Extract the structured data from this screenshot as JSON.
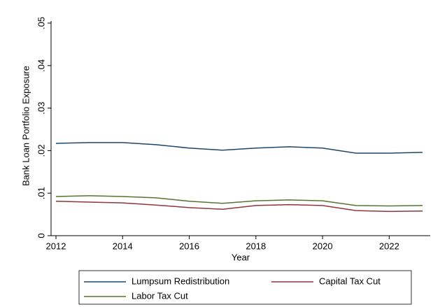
{
  "chart_data": {
    "type": "line",
    "x_label": "Year",
    "y_label": "Bank Loan Portfolio Exposure",
    "x": [
      2012,
      2013,
      2014,
      2015,
      2016,
      2017,
      2018,
      2019,
      2020,
      2021,
      2022,
      2023
    ],
    "series": [
      {
        "name": "Lumpsum Redistribution",
        "color": "#1a476f",
        "values": [
          0.0217,
          0.0219,
          0.0219,
          0.0214,
          0.0206,
          0.0201,
          0.0206,
          0.0209,
          0.0206,
          0.0194,
          0.0194,
          0.0196
        ]
      },
      {
        "name": "Capital Tax Cut",
        "color": "#90353b",
        "values": [
          0.0081,
          0.0079,
          0.0077,
          0.0072,
          0.0066,
          0.0062,
          0.0071,
          0.0073,
          0.0071,
          0.0059,
          0.0057,
          0.0058
        ]
      },
      {
        "name": "Labor Tax Cut",
        "color": "#55752f",
        "values": [
          0.0092,
          0.0094,
          0.0092,
          0.0089,
          0.0081,
          0.0076,
          0.0082,
          0.0084,
          0.0082,
          0.0071,
          0.007,
          0.0071
        ]
      }
    ],
    "xlim": [
      2012,
      2023
    ],
    "xticks": [
      2012,
      2014,
      2016,
      2018,
      2020,
      2022
    ],
    "ylim": [
      0,
      0.05
    ],
    "yticks": [
      0,
      {
        "value": 0.01,
        "label": ".01"
      },
      {
        "value": 0.02,
        "label": ".02"
      },
      {
        "value": 0.03,
        "label": ".03"
      },
      {
        "value": 0.04,
        "label": ".04"
      },
      {
        "value": 0.05,
        "label": ".05"
      }
    ],
    "grid": false,
    "legend": "bottom"
  }
}
